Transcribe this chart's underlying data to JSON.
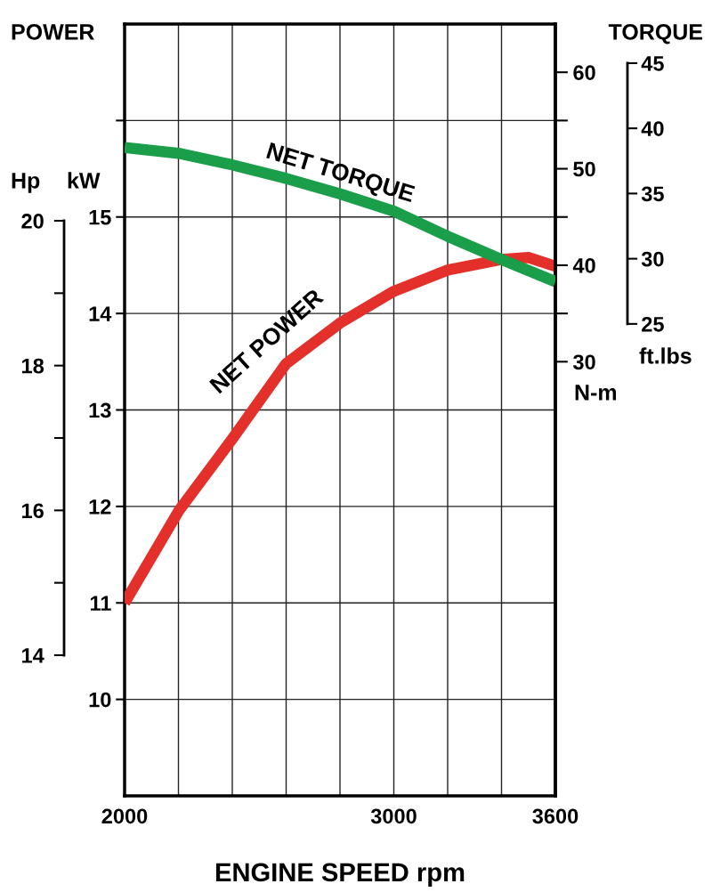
{
  "chart_data": {
    "type": "line",
    "xlabel": "ENGINE SPEED rpm",
    "ylabel": "kW",
    "y2label": "N-m",
    "y3label": "ft.lbs",
    "annotations": [
      "POWER",
      "TORQUE",
      "Hp",
      "20",
      "18",
      "16",
      "14"
    ],
    "xlim": [
      2000,
      3600
    ],
    "xticks": [
      2000,
      {
        "value": 2200,
        "label": null
      },
      {
        "value": 2400,
        "label": null
      },
      {
        "value": 2600,
        "label": null
      },
      {
        "value": 2800,
        "label": null
      },
      3000,
      {
        "value": 3200,
        "label": null
      },
      {
        "value": 3400,
        "label": null
      },
      3600
    ],
    "ylim": [
      9,
      17
    ],
    "yticks": [
      10,
      11,
      12,
      13,
      14,
      15,
      {
        "value": 16,
        "label": null
      }
    ],
    "y2lim": [
      -15,
      65
    ],
    "y2ticks": [
      30,
      {
        "value": 35,
        "label": null
      },
      40,
      {
        "value": 45,
        "label": null
      },
      50,
      {
        "value": 55,
        "label": null
      },
      60
    ],
    "y3lim": [
      -11.2,
      48.0
    ],
    "y3ticks": [
      25,
      30,
      35,
      40,
      45
    ],
    "grid": true,
    "legend": false,
    "marker": "none",
    "line_style": "solid",
    "series": [
      {
        "name": "NET TORQUE",
        "color": "#1a9e4a",
        "axis": "y2",
        "x": [
          2000,
          2200,
          2400,
          2600,
          2800,
          3000,
          3200,
          3400,
          3600
        ],
        "values": [
          52.2,
          51.6,
          50.4,
          49.0,
          47.4,
          45.6,
          43.0,
          40.6,
          38.3
        ]
      },
      {
        "name": "NET POWER",
        "color": "#e3302a",
        "x": [
          2000,
          2200,
          2400,
          2600,
          2800,
          3000,
          3200,
          3400,
          3500,
          3600
        ],
        "values": [
          11.0,
          11.95,
          12.7,
          13.48,
          13.9,
          14.23,
          14.45,
          14.56,
          14.58,
          14.49
        ]
      }
    ]
  }
}
